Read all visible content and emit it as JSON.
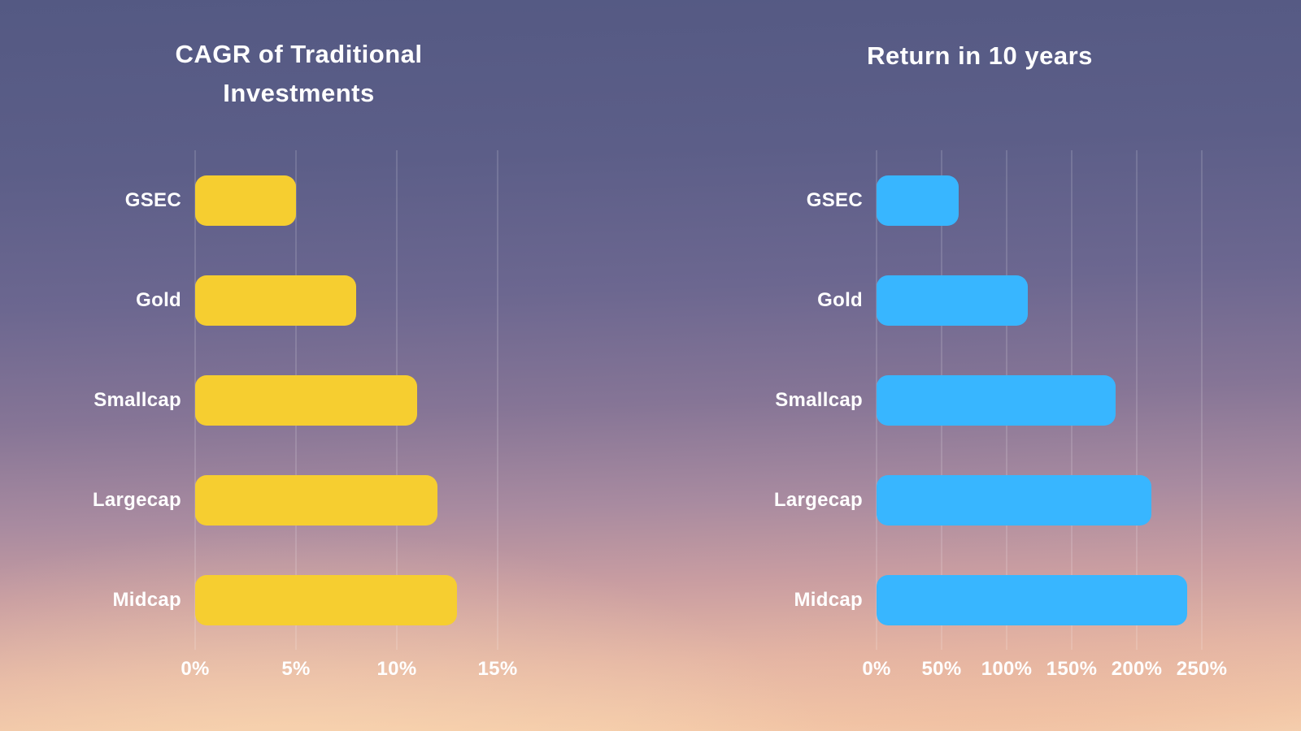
{
  "background": {
    "top_color": "#545983",
    "bottom_color": "#f6d2b0"
  },
  "chart_data": [
    {
      "type": "bar",
      "orientation": "horizontal",
      "title": "CAGR of Traditional Investments",
      "categories": [
        "GSEC",
        "Gold",
        "Smallcap",
        "Largecap",
        "Midcap"
      ],
      "values": [
        5,
        8,
        11,
        12,
        13
      ],
      "unit": "%",
      "bar_color": "#F6CE30",
      "axis_max": 15,
      "tick_values": [
        0,
        5,
        10,
        15
      ],
      "ticks": [
        "0%",
        "5%",
        "10%",
        "15%"
      ],
      "grid": true,
      "legend": "none",
      "text_color": "#FFFFFF"
    },
    {
      "type": "bar",
      "orientation": "horizontal",
      "title": "Return in 10 years",
      "categories": [
        "GSEC",
        "Gold",
        "Smallcap",
        "Largecap",
        "Midcap"
      ],
      "values": [
        63,
        116,
        184,
        211,
        239
      ],
      "unit": "%",
      "bar_color": "#38B6FF",
      "axis_max": 250,
      "tick_values": [
        0,
        50,
        100,
        150,
        200,
        250
      ],
      "ticks": [
        "0%",
        "50%",
        "100%",
        "150%",
        "200%",
        "250%"
      ],
      "grid": true,
      "legend": "none",
      "text_color": "#FFFFFF"
    }
  ]
}
